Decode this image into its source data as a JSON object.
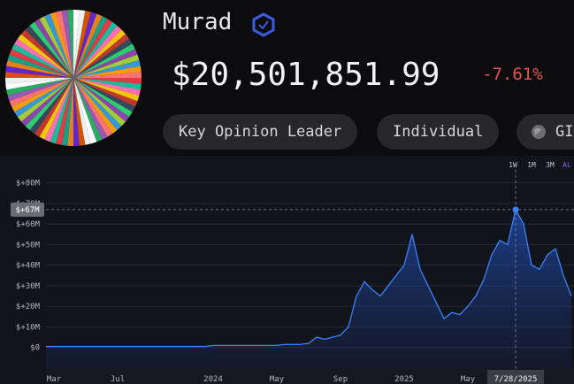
{
  "header": {
    "name": "Murad",
    "value": "$20,501,851.99",
    "change": "-7.61%",
    "tags": [
      "Key Opinion Leader",
      "Individual",
      "GIG"
    ]
  },
  "range_buttons": [
    "1W",
    "1M",
    "3M",
    "AL"
  ],
  "chart_data": {
    "type": "area",
    "color": "#3b82f6",
    "categories": [
      null,
      "Mar",
      null,
      null,
      null,
      null,
      null,
      null,
      null,
      "Jul",
      null,
      null,
      null,
      null,
      null,
      null,
      null,
      null,
      null,
      null,
      null,
      "2024",
      null,
      null,
      null,
      null,
      null,
      null,
      null,
      "May",
      null,
      null,
      null,
      null,
      null,
      null,
      null,
      "Sep",
      null,
      null,
      null,
      null,
      null,
      null,
      null,
      "2025",
      null,
      null,
      null,
      null,
      null,
      null,
      null,
      "May",
      null,
      null,
      null,
      null,
      null,
      "7/28/2025",
      null,
      null,
      null,
      null,
      null,
      null,
      null
    ],
    "values": [
      500000,
      500000,
      500000,
      500000,
      500000,
      500000,
      500000,
      500000,
      500000,
      500000,
      500000,
      500000,
      500000,
      500000,
      500000,
      500000,
      500000,
      500000,
      500000,
      500000,
      500000,
      1000000,
      1000000,
      1000000,
      1000000,
      1000000,
      1000000,
      1000000,
      1000000,
      1000000,
      1500000,
      1500000,
      1500000,
      2000000,
      5000000,
      4000000,
      5000000,
      6000000,
      10000000,
      25000000,
      32000000,
      28000000,
      25000000,
      30000000,
      35000000,
      40000000,
      55000000,
      38000000,
      30000000,
      22000000,
      14000000,
      17000000,
      16000000,
      20000000,
      25000000,
      33000000,
      45000000,
      52000000,
      50000000,
      67000000,
      60000000,
      40000000,
      38000000,
      45000000,
      48000000,
      35000000,
      25000000
    ],
    "ylim": [
      -10000000,
      85000000
    ],
    "yticks": [
      {
        "value": 0,
        "label": "$0"
      },
      {
        "value": 10000000,
        "label": "$+10M"
      },
      {
        "value": 20000000,
        "label": "$+20M"
      },
      {
        "value": 30000000,
        "label": "$+30M"
      },
      {
        "value": 40000000,
        "label": "$+40M"
      },
      {
        "value": 50000000,
        "label": "$+50M"
      },
      {
        "value": 60000000,
        "label": "$+60M"
      },
      {
        "value": 70000000,
        "label": "$+70M"
      },
      {
        "value": 80000000,
        "label": "$+80M"
      }
    ],
    "grid": true,
    "crosshair": {
      "label": "$+67M",
      "value": 67000000,
      "x": "7/28/2025"
    }
  }
}
